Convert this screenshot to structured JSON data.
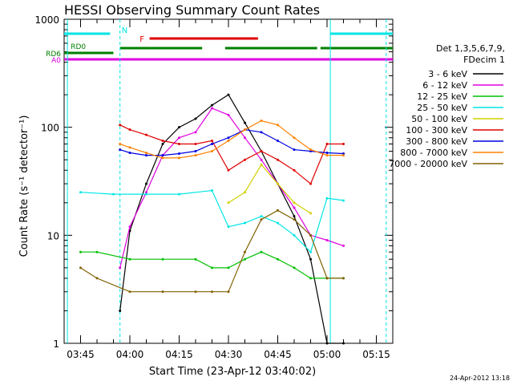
{
  "chart_data": {
    "type": "line",
    "title": "HESSI Observing Summary Count Rates",
    "xlabel": "Start Time (23-Apr-12 03:40:02)",
    "ylabel": "Count Rate (s⁻¹ detector⁻¹)",
    "scale": "log",
    "xlim_minutes": [
      220,
      320
    ],
    "ylim": [
      1,
      1000
    ],
    "x_ticks": [
      "03:45",
      "04:00",
      "04:15",
      "04:30",
      "04:45",
      "05:00",
      "05:15"
    ],
    "y_ticks": [
      "1",
      "10",
      "100",
      "1000"
    ],
    "legend_title": [
      "Det 1,3,5,6,7,9,",
      "FDecim 1"
    ],
    "legend_position": "right",
    "footer": "24-Apr-2012 13:18",
    "flags": [
      {
        "label": "N",
        "color": "#00e5e5"
      },
      {
        "label": "F",
        "color": "#e00000"
      },
      {
        "label": "RD0",
        "color": "#008000"
      },
      {
        "label": "RD6",
        "color": "#008000"
      },
      {
        "label": "A0",
        "color": "#e000e0"
      }
    ],
    "series": [
      {
        "name": "3 - 6 keV",
        "color": "#000000",
        "x": [
          237,
          240,
          245,
          250,
          255,
          260,
          265,
          270,
          275,
          280,
          285,
          290,
          295,
          300,
          305
        ],
        "values": [
          2,
          11,
          30,
          70,
          100,
          120,
          160,
          200,
          110,
          60,
          30,
          15,
          6,
          1,
          1
        ]
      },
      {
        "name": "6 - 12 keV",
        "color": "#e000e0",
        "x": [
          237,
          240,
          245,
          250,
          255,
          260,
          265,
          270,
          275,
          280,
          285,
          290,
          295,
          300,
          305
        ],
        "values": [
          5,
          12,
          25,
          55,
          80,
          90,
          150,
          130,
          80,
          50,
          30,
          18,
          10,
          9,
          8
        ]
      },
      {
        "name": "12 - 25 keV",
        "color": "#00c000",
        "x": [
          225,
          230,
          240,
          250,
          260,
          265,
          270,
          275,
          280,
          285,
          290,
          295,
          300,
          305
        ],
        "values": [
          7,
          7,
          6,
          6,
          6,
          5,
          5,
          6,
          7,
          6,
          5,
          4,
          4,
          4
        ]
      },
      {
        "name": "25 - 50 keV",
        "color": "#00e5e5",
        "x": [
          225,
          235,
          245,
          255,
          265,
          270,
          275,
          280,
          285,
          290,
          295,
          300,
          305
        ],
        "values": [
          25,
          24,
          24,
          24,
          26,
          12,
          13,
          15,
          13,
          10,
          7,
          22,
          21
        ]
      },
      {
        "name": "50 - 100 keV",
        "color": "#d0d000",
        "x": [
          270,
          275,
          280,
          285,
          290,
          295
        ],
        "values": [
          20,
          25,
          45,
          30,
          20,
          16
        ]
      },
      {
        "name": "100 - 300 keV",
        "color": "#e00000",
        "x": [
          237,
          240,
          245,
          250,
          255,
          260,
          265,
          270,
          275,
          280,
          285,
          290,
          295,
          300,
          305
        ],
        "values": [
          105,
          95,
          85,
          75,
          70,
          70,
          75,
          40,
          50,
          60,
          50,
          40,
          30,
          70,
          70
        ]
      },
      {
        "name": "300 - 800 keV",
        "color": "#0000e0",
        "x": [
          237,
          240,
          245,
          250,
          255,
          260,
          265,
          270,
          275,
          280,
          285,
          290,
          295,
          300,
          305
        ],
        "values": [
          62,
          58,
          55,
          55,
          57,
          60,
          70,
          80,
          95,
          90,
          75,
          62,
          60,
          58,
          57
        ]
      },
      {
        "name": "800 - 7000 keV",
        "color": "#ff8000",
        "x": [
          237,
          240,
          245,
          250,
          255,
          260,
          265,
          270,
          275,
          280,
          285,
          290,
          295,
          300,
          305
        ],
        "values": [
          70,
          65,
          58,
          52,
          52,
          55,
          60,
          75,
          95,
          115,
          105,
          80,
          62,
          55,
          55
        ]
      },
      {
        "name": "7000 - 20000 keV",
        "color": "#806000",
        "x": [
          225,
          230,
          240,
          250,
          260,
          265,
          270,
          275,
          280,
          285,
          290,
          295,
          300,
          305
        ],
        "values": [
          5,
          4,
          3,
          3,
          3,
          3,
          3,
          7,
          14,
          17,
          14,
          10,
          4,
          4
        ]
      }
    ]
  }
}
